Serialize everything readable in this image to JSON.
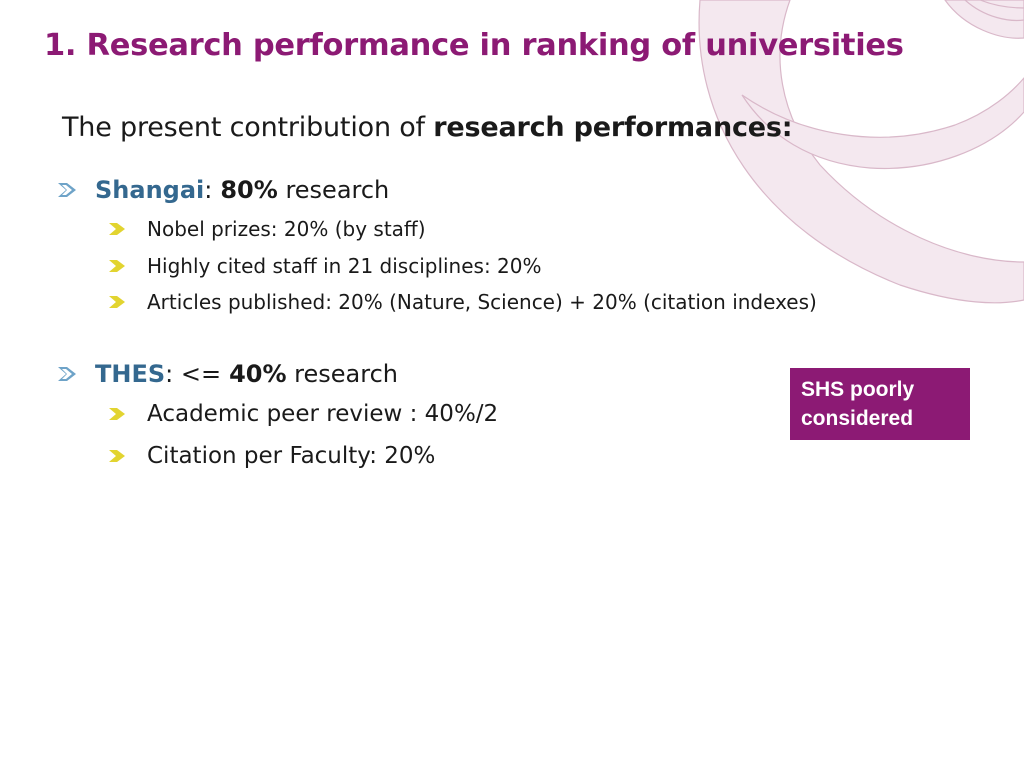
{
  "slide": {
    "title": "1. Research performance in ranking of universities",
    "subtitle_plain": "The present contribution of ",
    "subtitle_bold": "research performances:"
  },
  "sections": [
    {
      "name": "Shangai",
      "sep": ":",
      "percent": "80%",
      "rest": " research",
      "items": [
        "Nobel prizes: 20% (by staff)",
        "Highly cited staff in 21 disciplines: 20%",
        "Articles published: 20% (Nature, Science) + 20% (citation indexes)"
      ]
    },
    {
      "name": "THES",
      "sep": ": <=",
      "percent": "40%",
      "rest": " research",
      "items": [
        "Academic peer review : 40%/2",
        "Citation per Faculty: 20%"
      ]
    }
  ],
  "callout": {
    "line1": "SHS poorly",
    "line2": "considered"
  },
  "colors": {
    "accent": "#8c1a74",
    "keyword": "#34688f",
    "bullet_l1": "#6ea3c8",
    "bullet_l2": "#e2d430",
    "decor": "#f3e6ee"
  },
  "icons": {
    "level1_bullet": "chevron-right-icon",
    "level2_bullet": "chevron-right-icon"
  }
}
